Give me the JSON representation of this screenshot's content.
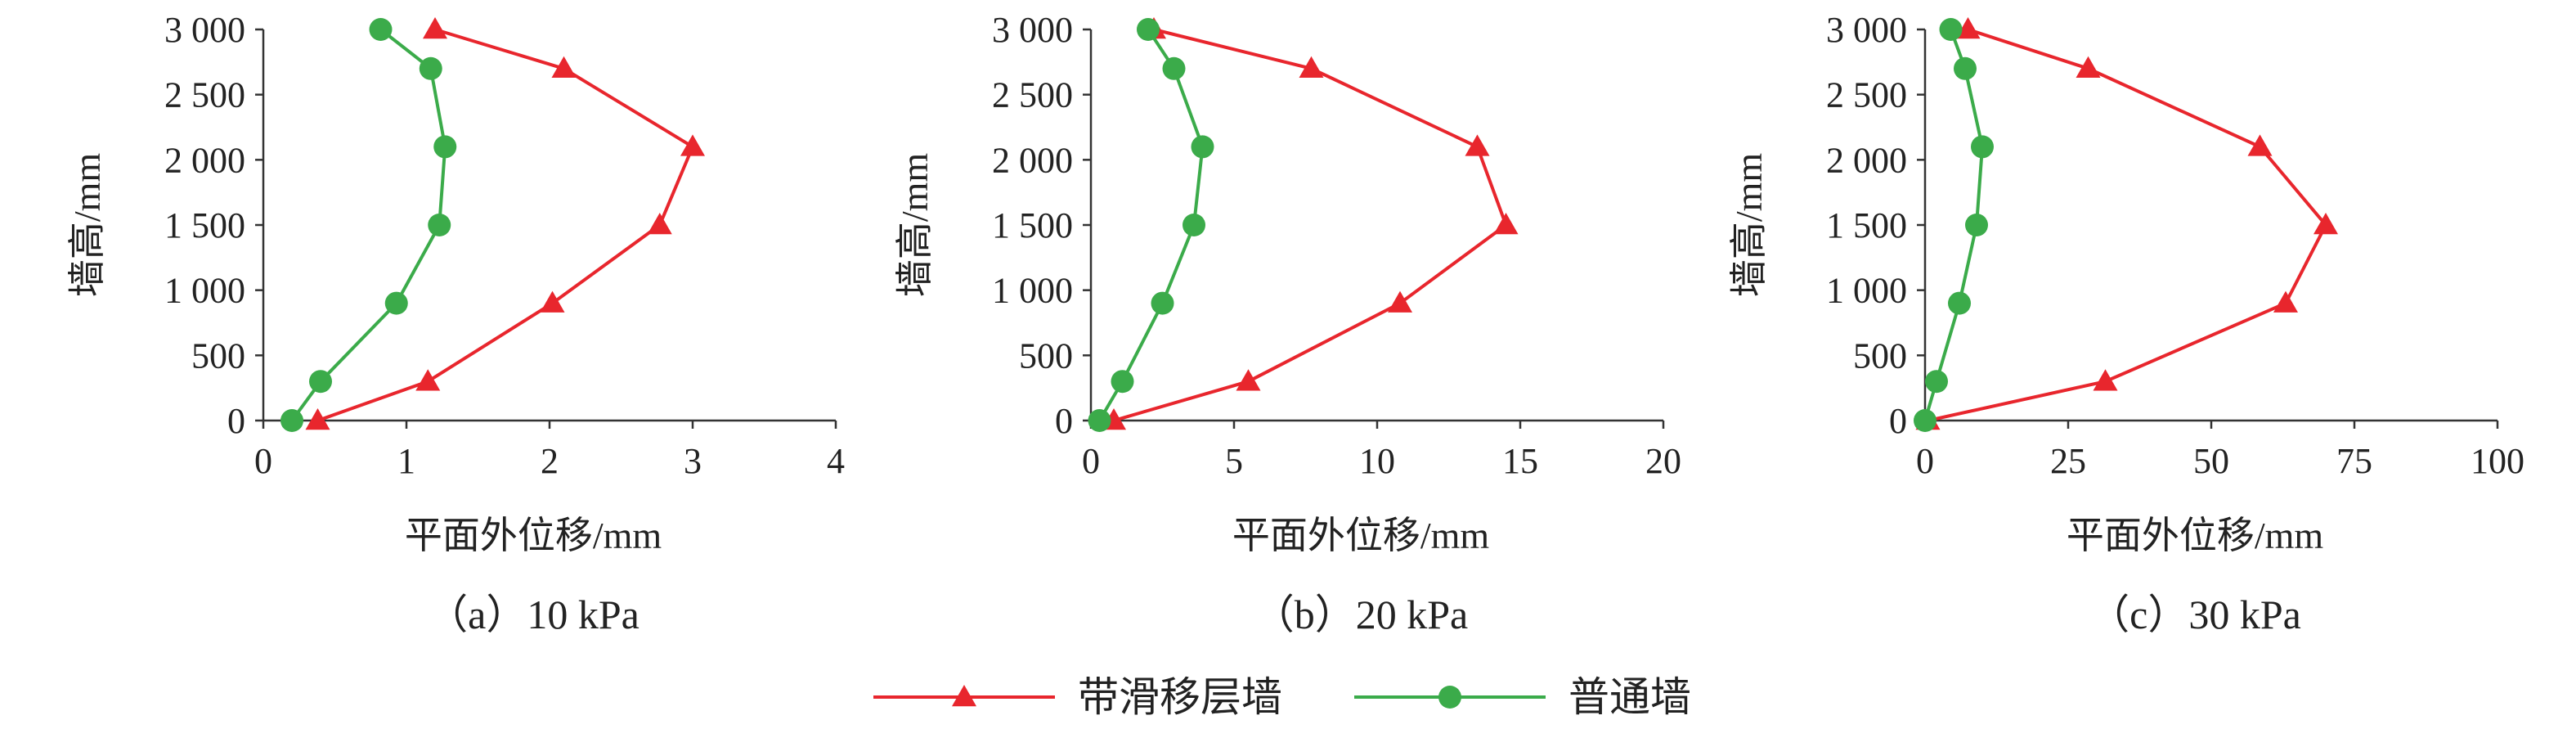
{
  "chart_data": [
    {
      "type": "line",
      "caption": "（a）10 kPa",
      "xlabel": "平面外位移/mm",
      "ylabel": "墙高/mm",
      "xlim": [
        0,
        4
      ],
      "xticks": [
        0,
        1,
        2,
        3,
        4
      ],
      "ylim": [
        0,
        3000
      ],
      "yticks": [
        0,
        500,
        {
          "value": 1000,
          "label": "1 000"
        },
        {
          "value": 1500,
          "label": "1 500"
        },
        {
          "value": 2000,
          "label": "2 000"
        },
        {
          "value": 2500,
          "label": "2 500"
        },
        {
          "value": 3000,
          "label": "3 000"
        }
      ],
      "series": [
        {
          "color": "#e8262d",
          "marker": "triangle",
          "x": [
            0.38,
            1.15,
            2.02,
            2.77,
            3.0,
            2.1,
            1.2
          ],
          "values": [
            0,
            300,
            900,
            1500,
            2100,
            2700,
            3000
          ]
        },
        {
          "color": "#3bab4a",
          "marker": "circle",
          "x": [
            0.2,
            0.4,
            0.93,
            1.23,
            1.27,
            1.17,
            0.82
          ],
          "values": [
            0,
            300,
            900,
            1500,
            2100,
            2700,
            3000
          ]
        }
      ]
    },
    {
      "type": "line",
      "caption": "（b）20 kPa",
      "xlabel": "平面外位移/mm",
      "ylabel": "墙高/mm",
      "xlim": [
        0,
        20
      ],
      "xticks": [
        0,
        5,
        10,
        15,
        20
      ],
      "ylim": [
        0,
        3000
      ],
      "yticks": [
        0,
        500,
        {
          "value": 1000,
          "label": "1 000"
        },
        {
          "value": 1500,
          "label": "1 500"
        },
        {
          "value": 2000,
          "label": "2 000"
        },
        {
          "value": 2500,
          "label": "2 500"
        },
        {
          "value": 3000,
          "label": "3 000"
        }
      ],
      "series": [
        {
          "color": "#e8262d",
          "marker": "triangle",
          "x": [
            0.8,
            5.5,
            10.8,
            14.5,
            13.5,
            7.7,
            2.2
          ],
          "values": [
            0,
            300,
            900,
            1500,
            2100,
            2700,
            3000
          ]
        },
        {
          "color": "#3bab4a",
          "marker": "circle",
          "x": [
            0.3,
            1.1,
            2.5,
            3.6,
            3.9,
            2.9,
            2.0
          ],
          "values": [
            0,
            300,
            900,
            1500,
            2100,
            2700,
            3000
          ]
        }
      ]
    },
    {
      "type": "line",
      "caption": "（c）30 kPa",
      "xlabel": "平面外位移/mm",
      "ylabel": "墙高/mm",
      "xlim": [
        0,
        100
      ],
      "xticks": [
        0,
        25,
        50,
        75,
        100
      ],
      "ylim": [
        0,
        3000
      ],
      "yticks": [
        0,
        500,
        {
          "value": 1000,
          "label": "1 000"
        },
        {
          "value": 1500,
          "label": "1 500"
        },
        {
          "value": 2000,
          "label": "2 000"
        },
        {
          "value": 2500,
          "label": "2 500"
        },
        {
          "value": 3000,
          "label": "3 000"
        }
      ],
      "series": [
        {
          "color": "#e8262d",
          "marker": "triangle",
          "x": [
            0.5,
            31.5,
            63,
            70,
            58.5,
            28.5,
            7.5
          ],
          "values": [
            0,
            300,
            900,
            1500,
            2100,
            2700,
            3000
          ]
        },
        {
          "color": "#3bab4a",
          "marker": "circle",
          "x": [
            0,
            2,
            6,
            9,
            10,
            7,
            4.5
          ],
          "values": [
            0,
            300,
            900,
            1500,
            2100,
            2700,
            3000
          ]
        }
      ]
    }
  ],
  "legend": [
    {
      "name": "带滑移层墙",
      "color": "#e8262d",
      "marker": "triangle"
    },
    {
      "name": "普通墙",
      "color": "#3bab4a",
      "marker": "circle"
    }
  ]
}
